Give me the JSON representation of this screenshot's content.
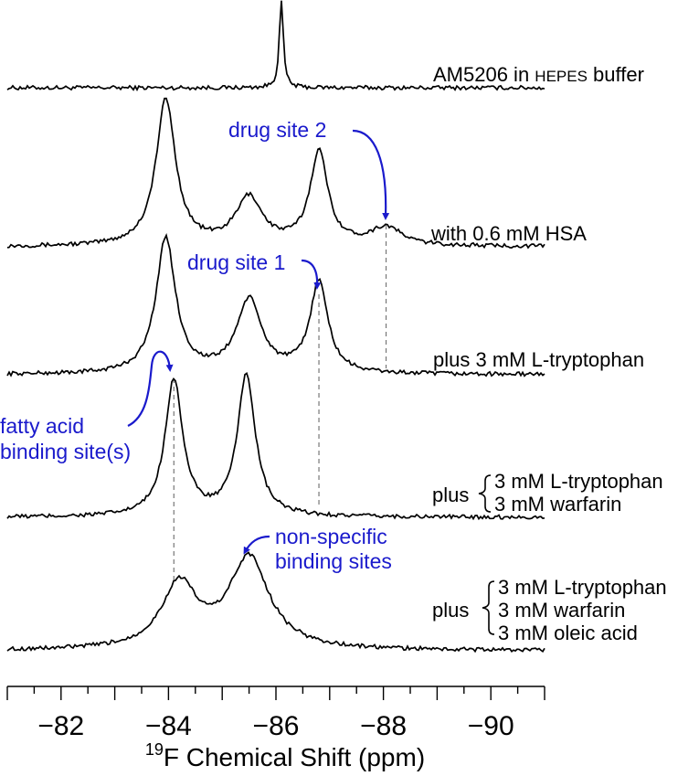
{
  "chart_data": {
    "type": "line",
    "title": "",
    "xlabel_sup": "19",
    "xlabel_main": "F Chemical Shift (ppm)",
    "xlim": [
      -81,
      -91
    ],
    "x_ticks": [
      -82,
      -84,
      -86,
      -88,
      -90
    ],
    "x_tick_labels": [
      "−82",
      "−84",
      "−86",
      "−88",
      "−90"
    ],
    "series": [
      {
        "name": "buffer",
        "label_main": "AM5206 in ",
        "label_small": "HEPES",
        "label_end": " buffer",
        "peaks": [
          {
            "x": -86.1,
            "height": 95,
            "width": 0.045
          }
        ]
      },
      {
        "name": "hsa",
        "label": "with 0.6 mM HSA",
        "peaks": [
          {
            "x": -83.95,
            "height": 160,
            "width": 0.22
          },
          {
            "x": -85.5,
            "height": 52,
            "width": 0.3
          },
          {
            "x": -86.8,
            "height": 102,
            "width": 0.2
          },
          {
            "x": -88.05,
            "height": 20,
            "width": 0.35
          }
        ]
      },
      {
        "name": "trp",
        "label": "plus 3 mM L-tryptophan",
        "peaks": [
          {
            "x": -83.95,
            "height": 148,
            "width": 0.22
          },
          {
            "x": -85.5,
            "height": 80,
            "width": 0.28
          },
          {
            "x": -86.8,
            "height": 100,
            "width": 0.2
          }
        ]
      },
      {
        "name": "trp_warfarin",
        "label_prefix": "plus",
        "label_lines": [
          "3 mM L-tryptophan",
          "3 mM warfarin"
        ],
        "peaks": [
          {
            "x": -84.1,
            "height": 150,
            "width": 0.2
          },
          {
            "x": -85.45,
            "height": 155,
            "width": 0.2
          }
        ]
      },
      {
        "name": "trp_warfarin_oleic",
        "label_prefix": "plus",
        "label_lines": [
          "3 mM L-tryptophan",
          "3 mM warfarin",
          "3 mM oleic acid"
        ],
        "peaks": [
          {
            "x": -84.2,
            "height": 70,
            "width": 0.4
          },
          {
            "x": -85.5,
            "height": 100,
            "width": 0.45
          }
        ]
      }
    ],
    "annotations": {
      "drug_site_2": "drug site 2",
      "drug_site_1": "drug site 1",
      "fatty_acid_line1": "fatty acid",
      "fatty_acid_line2": "binding site(s)",
      "nonspecific_line1": "non-specific",
      "nonspecific_line2": "binding sites"
    },
    "annotation_color": "#1a1acc",
    "reference_lines_x": [
      -88.05,
      -86.8,
      -84.1
    ]
  }
}
